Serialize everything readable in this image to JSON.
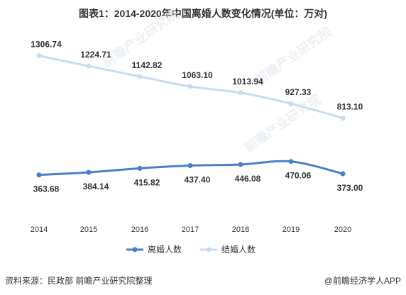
{
  "title": "图表1：2014-2020年中国离婚人数变化情况(单位：万对)",
  "source": "资料来源：民政部 前瞻产业研究院整理",
  "brand": "@前瞻经济学人APP",
  "watermark_text": "前瞻产业研究院",
  "colors": {
    "divorce": "#4a7fca",
    "marriage": "#c9ddf2",
    "label": "#333333"
  },
  "chart_data": {
    "type": "line",
    "title": "图表1：2014-2020年中国离婚人数变化情况(单位：万对)",
    "categories": [
      "2014",
      "2015",
      "2016",
      "2017",
      "2018",
      "2019",
      "2020"
    ],
    "series": [
      {
        "name": "离婚人数",
        "values": [
          363.68,
          384.14,
          415.82,
          437.4,
          446.08,
          470.06,
          373.0
        ],
        "labels": [
          "363.68",
          "384.14",
          "415.82",
          "437.40",
          "446.08",
          "470.06",
          "373.00"
        ],
        "color": "#4a7fca"
      },
      {
        "name": "结婚人数",
        "values": [
          1306.74,
          1224.71,
          1142.82,
          1063.1,
          1013.94,
          927.33,
          813.1
        ],
        "labels": [
          "1306.74",
          "1224.71",
          "1142.82",
          "1063.10",
          "1013.94",
          "927.33",
          "813.10"
        ],
        "color": "#c9ddf2"
      }
    ],
    "grid": false,
    "legend": "bottom-center"
  }
}
